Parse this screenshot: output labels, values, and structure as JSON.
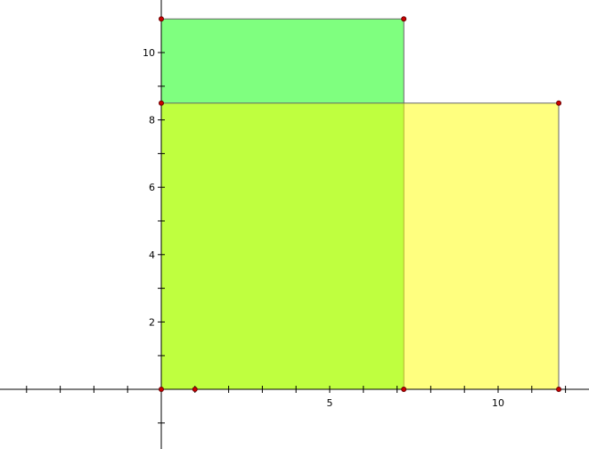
{
  "graph": {
    "x_axis": {
      "ticks": [
        -4,
        -3,
        -2,
        -1,
        1,
        2,
        3,
        4,
        5,
        6,
        7,
        8,
        9,
        10,
        11,
        12
      ],
      "labels": [
        {
          "value": 5,
          "text": "5"
        },
        {
          "value": 10,
          "text": "10"
        }
      ]
    },
    "y_axis": {
      "ticks": [
        -1,
        1,
        2,
        3,
        4,
        5,
        6,
        7,
        8,
        9,
        10
      ],
      "labels": [
        {
          "value": 2,
          "text": "2"
        },
        {
          "value": 4,
          "text": "4"
        },
        {
          "value": 6,
          "text": "6"
        },
        {
          "value": 8,
          "text": "8"
        },
        {
          "value": 10,
          "text": "10"
        }
      ]
    },
    "polygons": [
      {
        "name": "green-rectangle",
        "fill": "#00ff00",
        "opacity": 0.5,
        "stroke": "#666666",
        "points": [
          [
            0,
            0
          ],
          [
            7.2,
            0
          ],
          [
            7.2,
            11
          ],
          [
            0,
            11
          ]
        ]
      },
      {
        "name": "yellow-rectangle",
        "fill": "#ffff00",
        "opacity": 0.5,
        "stroke": "#666666",
        "points": [
          [
            0,
            0
          ],
          [
            11.8,
            0
          ],
          [
            11.8,
            8.5
          ],
          [
            0,
            8.5
          ]
        ]
      }
    ],
    "points": [
      [
        0,
        0
      ],
      [
        1,
        0
      ],
      [
        7.2,
        0
      ],
      [
        11.8,
        0
      ],
      [
        0,
        8.5
      ],
      [
        11.8,
        8.5
      ],
      [
        0,
        11
      ],
      [
        7.2,
        11
      ]
    ],
    "colors": {
      "axis": "#000000",
      "point_fill": "#cc0000",
      "point_stroke": "#660000"
    }
  }
}
